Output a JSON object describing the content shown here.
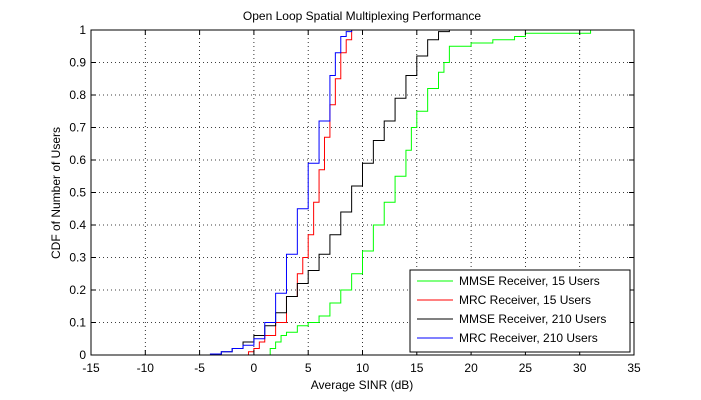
{
  "chart_data": {
    "type": "line",
    "title": "Open Loop Spatial Multiplexing Performance",
    "xlabel": "Average SINR (dB)",
    "ylabel": "CDF of Number of Users",
    "xlim": [
      -15,
      35
    ],
    "ylim": [
      0,
      1
    ],
    "xticks": [
      "-15",
      "-10",
      "-5",
      "0",
      "5",
      "10",
      "15",
      "20",
      "25",
      "30",
      "35"
    ],
    "yticks": [
      "0",
      "0.1",
      "0.2",
      "0.3",
      "0.4",
      "0.5",
      "0.6",
      "0.7",
      "0.8",
      "0.9",
      "1"
    ],
    "grid": true,
    "legend_position": "bottom-right",
    "series": [
      {
        "name": "MMSE Receiver, 15 Users",
        "color": "#00ff00",
        "x": [
          1,
          1.5,
          2,
          2.5,
          3,
          4,
          5,
          6,
          7,
          8,
          9,
          10,
          11,
          12,
          13,
          14,
          14.5,
          15,
          16,
          17,
          17.5,
          18,
          20,
          22,
          24,
          25,
          28,
          30,
          31
        ],
        "y": [
          0,
          0.02,
          0.04,
          0.06,
          0.07,
          0.09,
          0.1,
          0.12,
          0.16,
          0.2,
          0.25,
          0.32,
          0.4,
          0.47,
          0.55,
          0.63,
          0.7,
          0.75,
          0.82,
          0.87,
          0.9,
          0.95,
          0.96,
          0.97,
          0.98,
          0.99,
          0.99,
          0.99,
          1.0
        ]
      },
      {
        "name": "MRC Receiver, 15 Users",
        "color": "#ff0000",
        "x": [
          -1,
          -0.5,
          0,
          0.5,
          1,
          2,
          3,
          4,
          4.5,
          5,
          5.5,
          6,
          6.5,
          7,
          7.5,
          8,
          8.5,
          9
        ],
        "y": [
          0,
          0.01,
          0.02,
          0.04,
          0.06,
          0.1,
          0.18,
          0.25,
          0.3,
          0.37,
          0.47,
          0.57,
          0.67,
          0.77,
          0.85,
          0.93,
          0.97,
          1.0
        ]
      },
      {
        "name": "MMSE Receiver, 210 Users",
        "color": "#000000",
        "x": [
          -10,
          -5,
          -4,
          -3,
          -2,
          -1,
          0,
          1,
          2,
          3,
          4,
          5,
          6,
          7,
          8,
          9,
          10,
          11,
          12,
          13,
          14,
          15,
          16,
          17,
          18
        ],
        "y": [
          0,
          0,
          0.003,
          0.01,
          0.02,
          0.04,
          0.06,
          0.09,
          0.13,
          0.18,
          0.22,
          0.26,
          0.31,
          0.37,
          0.44,
          0.52,
          0.59,
          0.66,
          0.72,
          0.79,
          0.86,
          0.92,
          0.97,
          0.995,
          1.0
        ]
      },
      {
        "name": "MRC Receiver, 210 Users",
        "color": "#0000ff",
        "x": [
          -10,
          -5,
          -4,
          -3,
          -2,
          -1,
          0,
          1,
          2,
          3,
          4,
          5,
          6,
          7,
          7.5,
          8,
          8.5,
          9
        ],
        "y": [
          0,
          0,
          0.003,
          0.01,
          0.02,
          0.03,
          0.05,
          0.1,
          0.19,
          0.31,
          0.45,
          0.59,
          0.72,
          0.86,
          0.93,
          0.98,
          0.995,
          1.0
        ]
      }
    ]
  }
}
